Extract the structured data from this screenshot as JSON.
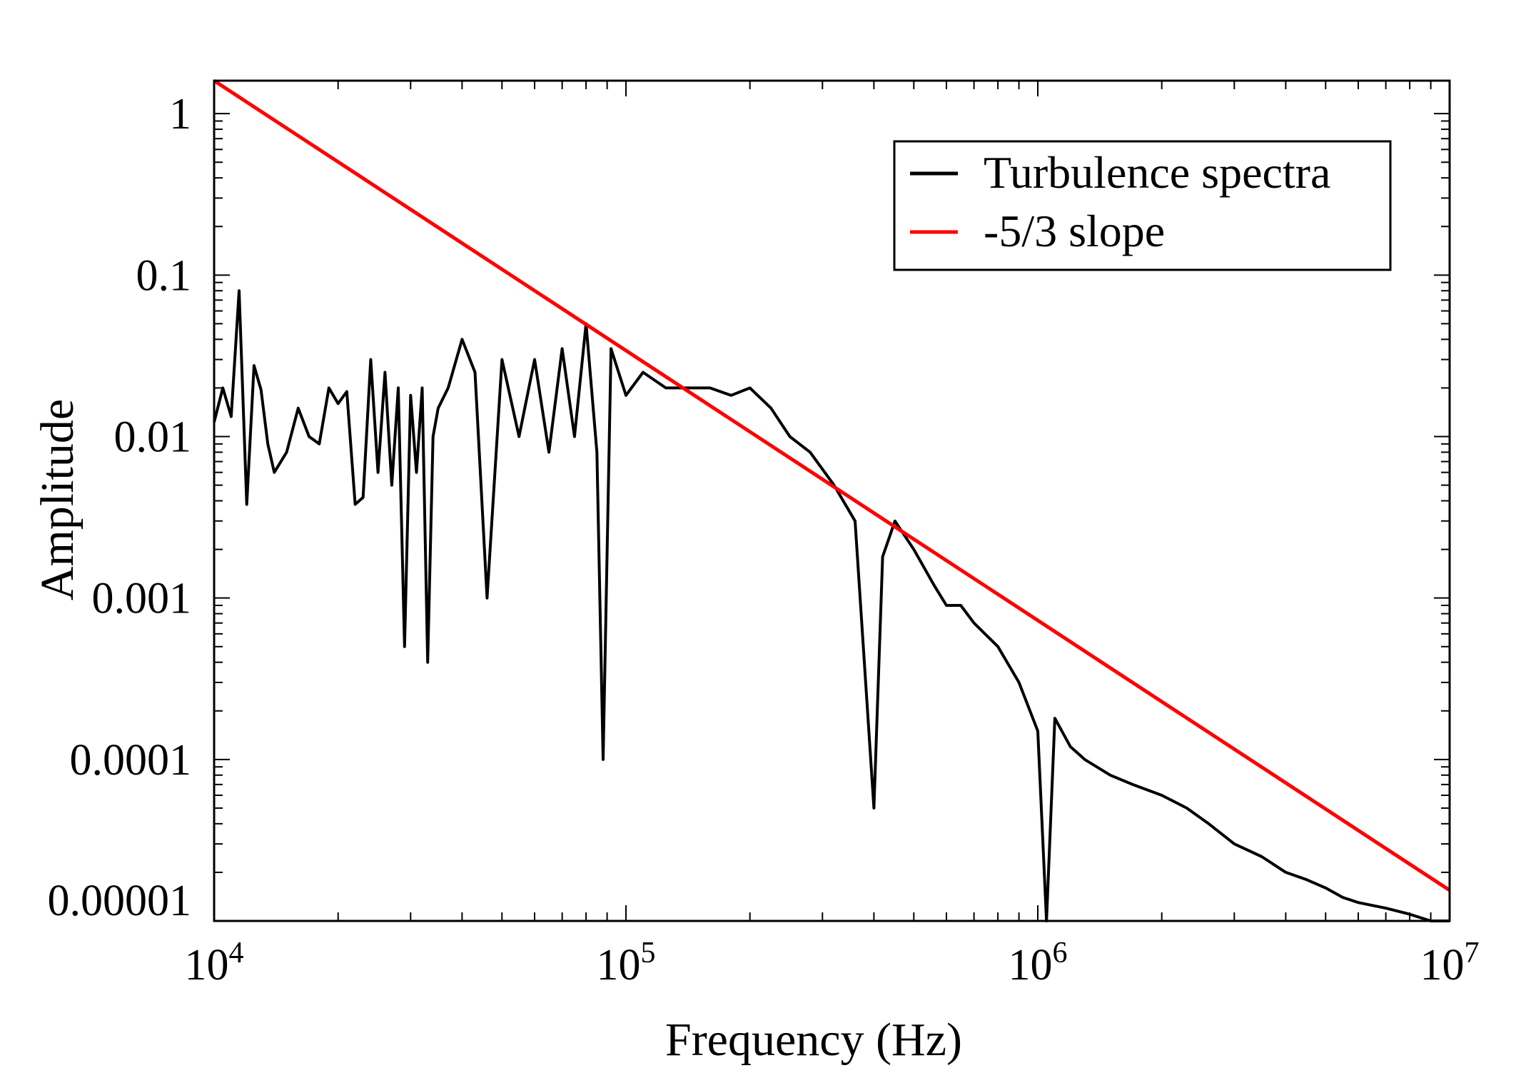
{
  "chart_data": {
    "type": "line",
    "title": "",
    "xlabel": "Frequency (Hz)",
    "ylabel": "Amplitude",
    "xscale": "log",
    "yscale": "log",
    "xlim": [
      10000,
      10000000
    ],
    "ylim": [
      1e-05,
      1.6
    ],
    "x_ticks": [
      {
        "value": 10000,
        "base": "10",
        "exp": "4"
      },
      {
        "value": 100000,
        "base": "10",
        "exp": "5"
      },
      {
        "value": 1000000,
        "base": "10",
        "exp": "6"
      },
      {
        "value": 10000000,
        "base": "10",
        "exp": "7"
      }
    ],
    "y_ticks": [
      {
        "value": 1,
        "label": "1"
      },
      {
        "value": 0.1,
        "label": "0.1"
      },
      {
        "value": 0.01,
        "label": "0.01"
      },
      {
        "value": 0.001,
        "label": "0.001"
      },
      {
        "value": 0.0001,
        "label": "0.0001"
      },
      {
        "value": 1e-05,
        "label": "0.00001"
      }
    ],
    "grid": false,
    "legend": {
      "position": "top-right",
      "entries": [
        {
          "label": "Turbulence spectra",
          "color": "#000000"
        },
        {
          "label": "-5/3 slope",
          "color": "#ff0000"
        }
      ]
    },
    "series": [
      {
        "name": "Turbulence spectra",
        "color": "#000000",
        "x": [
          10000,
          10500,
          11000,
          11500,
          12000,
          12500,
          13000,
          13500,
          14000,
          15000,
          16000,
          17000,
          18000,
          19000,
          20000,
          21000,
          22000,
          23000,
          24000,
          25000,
          26000,
          27000,
          28000,
          29000,
          30000,
          31000,
          32000,
          33000,
          34000,
          35000,
          37000,
          40000,
          43000,
          46000,
          50000,
          55000,
          60000,
          65000,
          70000,
          75000,
          80000,
          85000,
          88000,
          92000,
          100000,
          110000,
          125000,
          140000,
          160000,
          180000,
          200000,
          225000,
          250000,
          280000,
          320000,
          360000,
          400000,
          420000,
          450000,
          500000,
          560000,
          600000,
          650000,
          700000,
          800000,
          900000,
          1000000,
          1050000,
          1100000,
          1200000,
          1300000,
          1500000,
          1700000,
          2000000,
          2300000,
          2600000,
          3000000,
          3500000,
          4000000,
          4500000,
          5000000,
          5500000,
          6000000,
          7000000,
          8000000,
          9000000,
          10000000
        ],
        "y": [
          0.0123,
          0.02,
          0.0133,
          0.08,
          0.0038,
          0.0275,
          0.0195,
          0.009,
          0.006,
          0.008,
          0.015,
          0.01,
          0.009,
          0.02,
          0.016,
          0.019,
          0.0038,
          0.0042,
          0.03,
          0.006,
          0.025,
          0.005,
          0.02,
          0.0005,
          0.018,
          0.006,
          0.02,
          0.0004,
          0.01,
          0.015,
          0.02,
          0.04,
          0.025,
          0.001,
          0.03,
          0.01,
          0.03,
          0.008,
          0.035,
          0.01,
          0.05,
          0.008,
          0.0001,
          0.035,
          0.018,
          0.025,
          0.02,
          0.02,
          0.02,
          0.018,
          0.02,
          0.015,
          0.01,
          0.008,
          0.005,
          0.003,
          5e-05,
          0.0018,
          0.003,
          0.002,
          0.0012,
          0.0009,
          0.0009,
          0.0007,
          0.0005,
          0.0003,
          0.00015,
          1e-05,
          0.00018,
          0.00012,
          0.0001,
          8e-05,
          7e-05,
          6e-05,
          5e-05,
          4e-05,
          3e-05,
          2.5e-05,
          2e-05,
          1.8e-05,
          1.6e-05,
          1.4e-05,
          1.3e-05,
          1.2e-05,
          1.1e-05,
          1e-05,
          1e-05
        ]
      },
      {
        "name": "-5/3 slope",
        "color": "#ff0000",
        "x": [
          10000,
          10000000
        ],
        "y": [
          1.6,
          1.55e-05
        ]
      }
    ]
  }
}
